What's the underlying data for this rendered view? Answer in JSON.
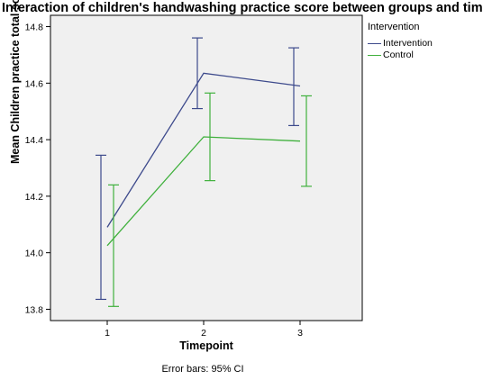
{
  "chart_data": {
    "type": "line",
    "title": "Interaction of children's handwashing practice score between groups and time",
    "xlabel": "Timepoint",
    "ylabel": "Mean Children practice total score",
    "note": "Error bars: 95% CI",
    "categories": [
      "1",
      "2",
      "3"
    ],
    "yticks": [
      "13.8",
      "14.0",
      "14.2",
      "14.4",
      "14.6",
      "14.8"
    ],
    "ylim": [
      13.76,
      14.84
    ],
    "legend_title": "Intervention",
    "legend_position": "right",
    "grid": false,
    "series": [
      {
        "name": "Intervention",
        "color": "#3d4a8c",
        "values": [
          14.09,
          14.635,
          14.59
        ],
        "ci_low": [
          13.835,
          14.51,
          14.45
        ],
        "ci_high": [
          14.345,
          14.76,
          14.725
        ]
      },
      {
        "name": "Control",
        "color": "#3fb03c",
        "values": [
          14.025,
          14.41,
          14.395
        ],
        "ci_low": [
          13.81,
          14.255,
          14.235
        ],
        "ci_high": [
          14.24,
          14.565,
          14.555
        ]
      }
    ]
  }
}
